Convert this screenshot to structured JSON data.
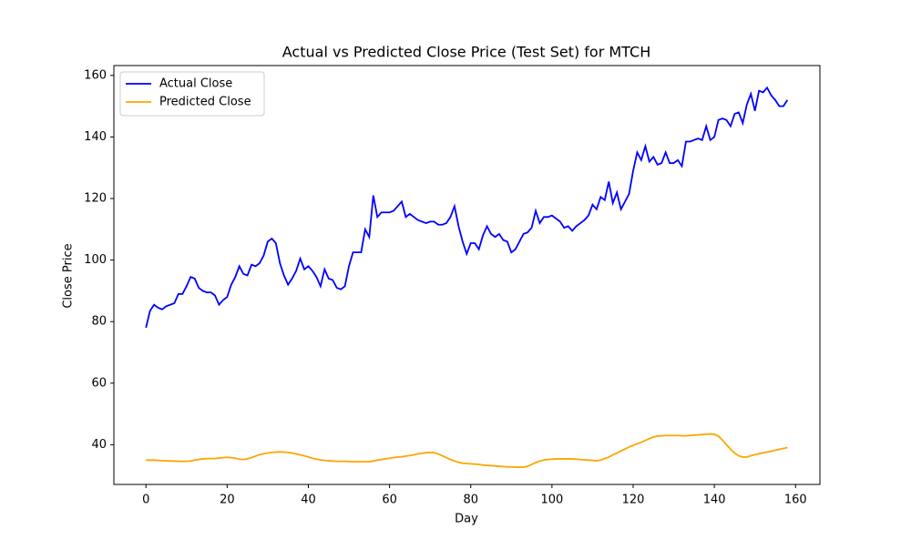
{
  "chart_data": {
    "type": "line",
    "title": "Actual vs Predicted Close Price (Test Set) for MTCH",
    "x_label": "Day",
    "y_label": "Close Price",
    "x": [
      0,
      1,
      2,
      3,
      4,
      5,
      6,
      7,
      8,
      9,
      10,
      11,
      12,
      13,
      14,
      15,
      16,
      17,
      18,
      19,
      20,
      21,
      22,
      23,
      24,
      25,
      26,
      27,
      28,
      29,
      30,
      31,
      32,
      33,
      34,
      35,
      36,
      37,
      38,
      39,
      40,
      41,
      42,
      43,
      44,
      45,
      46,
      47,
      48,
      49,
      50,
      51,
      52,
      53,
      54,
      55,
      56,
      57,
      58,
      59,
      60,
      61,
      62,
      63,
      64,
      65,
      66,
      67,
      68,
      69,
      70,
      71,
      72,
      73,
      74,
      75,
      76,
      77,
      78,
      79,
      80,
      81,
      82,
      83,
      84,
      85,
      86,
      87,
      88,
      89,
      90,
      91,
      92,
      93,
      94,
      95,
      96,
      97,
      98,
      99,
      100,
      101,
      102,
      103,
      104,
      105,
      106,
      107,
      108,
      109,
      110,
      111,
      112,
      113,
      114,
      115,
      116,
      117,
      118,
      119,
      120,
      121,
      122,
      123,
      124,
      125,
      126,
      127,
      128,
      129,
      130,
      131,
      132,
      133,
      134,
      135,
      136,
      137,
      138,
      139,
      140,
      141,
      142,
      143,
      144,
      145,
      146,
      147,
      148,
      149,
      150,
      151,
      152,
      153,
      154,
      155,
      156,
      157,
      158
    ],
    "series": [
      {
        "name": "Actual Close",
        "color": "#0000ff",
        "values": [
          78,
          83.5,
          85.5,
          84.5,
          84,
          85,
          85.5,
          86,
          89,
          89,
          91.5,
          94.5,
          94,
          91,
          90,
          89.5,
          89.5,
          88.5,
          85.5,
          87,
          88,
          92,
          94.5,
          98,
          95.5,
          95,
          98.5,
          98,
          99,
          101.5,
          106,
          107,
          105.5,
          99,
          95,
          92,
          94,
          96.5,
          100.5,
          97,
          98,
          96.5,
          94.5,
          91.5,
          97,
          94,
          93.5,
          91,
          90.5,
          91.5,
          98,
          102.5,
          102.5,
          102.5,
          110,
          107.5,
          121,
          114,
          115.5,
          115.5,
          115.5,
          116,
          117.5,
          119,
          114,
          115,
          114,
          113,
          112.5,
          112,
          112.5,
          112.5,
          111.5,
          111.5,
          112,
          114,
          117.5,
          111,
          106,
          102,
          105.5,
          105.5,
          103.5,
          108,
          111,
          108.5,
          107.5,
          108.5,
          106.5,
          106,
          102.5,
          103.5,
          106,
          108.5,
          109,
          110.5,
          116,
          112,
          114,
          114,
          114.5,
          113.5,
          112.5,
          110.5,
          111,
          109.5,
          111,
          112,
          113,
          114.5,
          118,
          116.5,
          120.5,
          119.5,
          125.5,
          118.5,
          122,
          116.5,
          119,
          121.5,
          129,
          135,
          132.5,
          137,
          132,
          133.5,
          131,
          131.5,
          135,
          131.5,
          131.5,
          132.5,
          130.5,
          138.5,
          138.5,
          139,
          139.5,
          139,
          143.5,
          139,
          140,
          145.5,
          146,
          145.5,
          143.5,
          147.5,
          148,
          144.5,
          150.5,
          154,
          148.5,
          155,
          154.5,
          156,
          153.5,
          152,
          150,
          150,
          152
        ]
      },
      {
        "name": "Predicted Close",
        "color": "#ffa500",
        "values": [
          35,
          35,
          35,
          34.9,
          34.8,
          34.8,
          34.7,
          34.7,
          34.6,
          34.6,
          34.6,
          34.7,
          35,
          35.2,
          35.4,
          35.5,
          35.5,
          35.5,
          35.7,
          35.8,
          35.9,
          35.8,
          35.6,
          35.3,
          35.2,
          35.4,
          35.8,
          36.3,
          36.8,
          37.1,
          37.3,
          37.5,
          37.6,
          37.7,
          37.6,
          37.5,
          37.3,
          37,
          36.7,
          36.4,
          36,
          35.6,
          35.3,
          35.1,
          34.9,
          34.8,
          34.7,
          34.6,
          34.6,
          34.6,
          34.5,
          34.5,
          34.5,
          34.5,
          34.5,
          34.5,
          34.7,
          35,
          35.2,
          35.4,
          35.6,
          35.8,
          36,
          36.1,
          36.3,
          36.5,
          36.7,
          37,
          37.2,
          37.4,
          37.5,
          37.4,
          37,
          36.4,
          35.8,
          35.2,
          34.7,
          34.3,
          34,
          33.9,
          33.8,
          33.7,
          33.6,
          33.4,
          33.3,
          33.2,
          33.1,
          33,
          32.9,
          32.8,
          32.8,
          32.7,
          32.7,
          32.7,
          33,
          33.6,
          34.2,
          34.7,
          35,
          35.2,
          35.3,
          35.4,
          35.4,
          35.4,
          35.4,
          35.4,
          35.3,
          35.2,
          35.1,
          35,
          34.9,
          34.8,
          35,
          35.5,
          36,
          36.7,
          37.3,
          38,
          38.6,
          39.3,
          39.8,
          40.3,
          40.8,
          41.4,
          42,
          42.5,
          42.8,
          42.9,
          43,
          43,
          43,
          43,
          42.9,
          42.9,
          43,
          43.1,
          43.2,
          43.3,
          43.4,
          43.5,
          43.4,
          42.8,
          41.5,
          40,
          38.5,
          37.3,
          36.4,
          36,
          36,
          36.4,
          36.8,
          37.1,
          37.4,
          37.6,
          37.9,
          38.2,
          38.5,
          38.8,
          39.1
        ]
      }
    ],
    "xlim": [
      -7.9,
      166
    ],
    "ylim": [
      27.1,
      163.2
    ],
    "xticks": [
      0,
      20,
      40,
      60,
      80,
      100,
      120,
      140,
      160
    ],
    "yticks": [
      40,
      60,
      80,
      100,
      120,
      140,
      160
    ],
    "legend": "upper left"
  }
}
